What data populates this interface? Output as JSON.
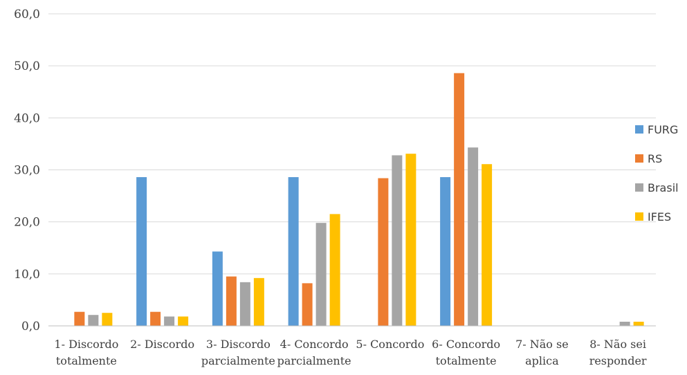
{
  "chart_data": {
    "type": "bar",
    "categories": [
      [
        "1- Discordo",
        "totalmente"
      ],
      [
        "2- Discordo"
      ],
      [
        "3- Discordo",
        "parcialmente"
      ],
      [
        "4- Concordo",
        "parcialmente"
      ],
      [
        "5- Concordo"
      ],
      [
        "6- Concordo",
        "totalmente"
      ],
      [
        "7- Não se",
        "aplica"
      ],
      [
        "8- Não sei",
        "responder"
      ]
    ],
    "series": [
      {
        "name": "FURG",
        "color": "#5B9BD5",
        "values": [
          0.0,
          28.6,
          14.3,
          28.6,
          0.0,
          28.6,
          0.0,
          0.0
        ]
      },
      {
        "name": "RS",
        "color": "#ED7D31",
        "values": [
          2.7,
          2.7,
          9.5,
          8.2,
          28.4,
          48.6,
          0.0,
          0.0
        ]
      },
      {
        "name": "Brasil",
        "color": "#A5A5A5",
        "values": [
          2.1,
          1.8,
          8.4,
          19.8,
          32.8,
          34.3,
          0.0,
          0.8
        ]
      },
      {
        "name": "IFES",
        "color": "#FFC000",
        "values": [
          2.5,
          1.8,
          9.2,
          21.5,
          33.1,
          31.1,
          0.0,
          0.8
        ]
      }
    ],
    "ylim": [
      0,
      60
    ],
    "yticks": [
      "0,0",
      "10,0",
      "20,0",
      "30,0",
      "40,0",
      "50,0",
      "60,0"
    ],
    "ytick_values": [
      0,
      10,
      20,
      30,
      40,
      50,
      60
    ],
    "grid": true,
    "legend_position": "right",
    "title": "",
    "xlabel": "",
    "ylabel": ""
  }
}
